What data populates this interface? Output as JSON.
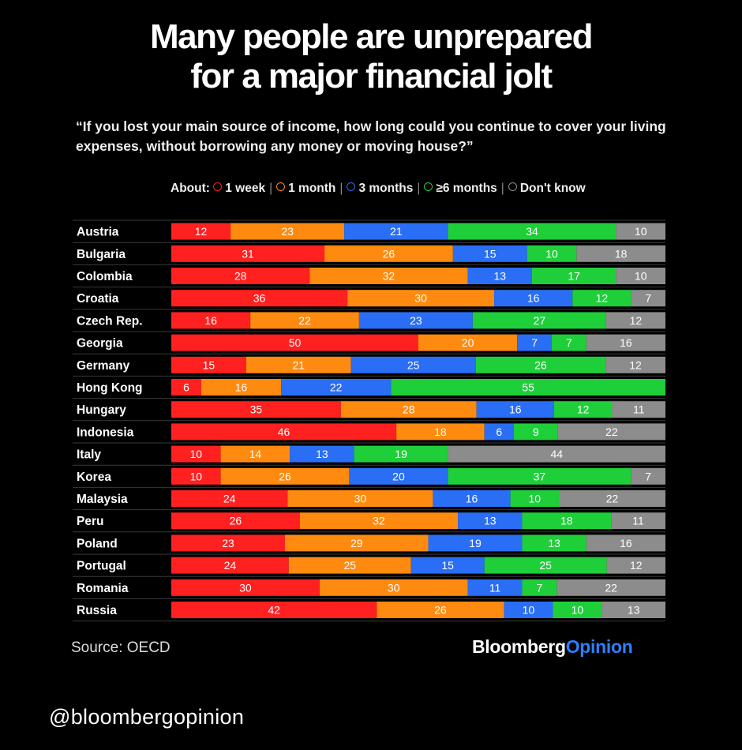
{
  "title": {
    "line1": "Many people are unprepared",
    "line2": "for a major financial jolt"
  },
  "subtitle": "“If you lost your main source of income, how long could you continue to cover your living expenses, without borrowing any money or moving house?”",
  "legend": {
    "prefix": "About:",
    "items": [
      {
        "label": "1 week",
        "color": "#ff2020"
      },
      {
        "label": "1 month",
        "color": "#ff8a10"
      },
      {
        "label": "3 months",
        "color": "#2a6ef5"
      },
      {
        "label": "≥6 months",
        "color": "#1fcf3a"
      },
      {
        "label": "Don't know",
        "color": "#8c8c8c"
      }
    ]
  },
  "chart_data": {
    "type": "bar",
    "orientation": "horizontal",
    "stacked": true,
    "title": "Many people are unprepared for a major financial jolt",
    "categories": [
      "Austria",
      "Bulgaria",
      "Colombia",
      "Croatia",
      "Czech Rep.",
      "Georgia",
      "Germany",
      "Hong Kong",
      "Hungary",
      "Indonesia",
      "Italy",
      "Korea",
      "Malaysia",
      "Peru",
      "Poland",
      "Portugal",
      "Romania",
      "Russia"
    ],
    "series": [
      {
        "name": "1 week",
        "color": "#ff2020",
        "values": [
          12,
          31,
          28,
          36,
          16,
          50,
          15,
          6,
          35,
          46,
          10,
          10,
          24,
          26,
          23,
          24,
          30,
          42
        ]
      },
      {
        "name": "1 month",
        "color": "#ff8a10",
        "values": [
          23,
          26,
          32,
          30,
          22,
          20,
          21,
          16,
          28,
          18,
          14,
          26,
          30,
          32,
          29,
          25,
          30,
          26
        ]
      },
      {
        "name": "3 months",
        "color": "#2a6ef5",
        "values": [
          21,
          15,
          13,
          16,
          23,
          7,
          25,
          22,
          16,
          6,
          13,
          20,
          16,
          13,
          19,
          15,
          11,
          10
        ]
      },
      {
        "name": "≥6 months",
        "color": "#1fcf3a",
        "values": [
          34,
          10,
          17,
          12,
          27,
          7,
          26,
          55,
          12,
          9,
          19,
          37,
          10,
          18,
          13,
          25,
          7,
          10
        ]
      },
      {
        "name": "Don't know",
        "color": "#8c8c8c",
        "values": [
          10,
          18,
          10,
          7,
          12,
          16,
          12,
          0,
          11,
          22,
          44,
          7,
          22,
          11,
          16,
          12,
          22,
          13
        ]
      }
    ],
    "xlabel": "",
    "ylabel": "",
    "xlim": [
      0,
      100
    ]
  },
  "source": "Source: OECD",
  "brand": {
    "part1": "Bloomberg",
    "part2": "Opinion"
  },
  "handle": "@bloombergopinion"
}
